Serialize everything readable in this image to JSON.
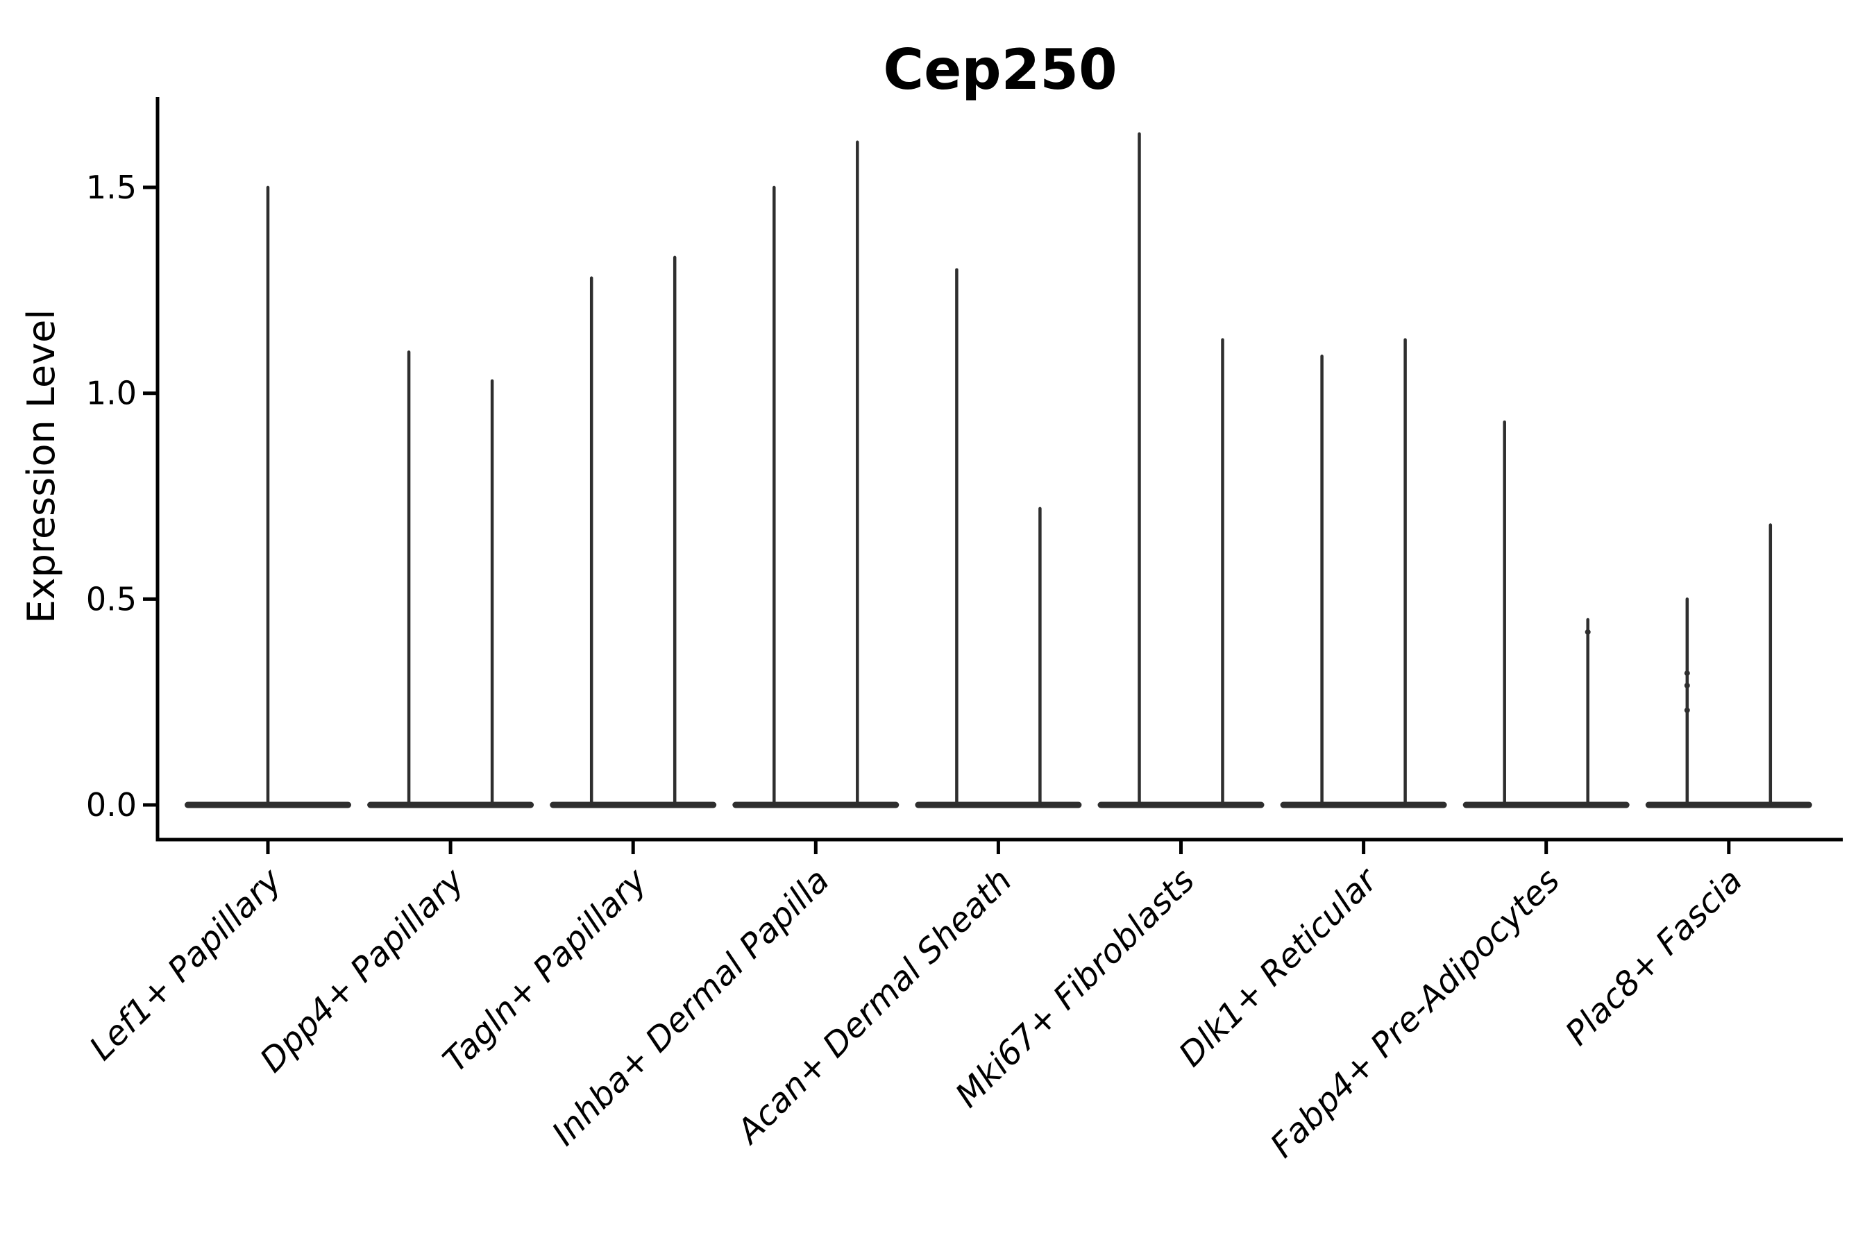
{
  "figure": {
    "background_color": "#ffffff",
    "axis_color": "#000000",
    "violin_color": "#2e2e2e"
  },
  "chart_data": {
    "type": "violin",
    "title": "Cep250",
    "xlabel": "",
    "ylabel": "Expression Level",
    "ylim": [
      0.0,
      1.72
    ],
    "yticks": [
      0.0,
      0.5,
      1.0,
      1.5
    ],
    "ytick_labels": [
      "0.0",
      "0.5",
      "1.0",
      "1.5"
    ],
    "grid": false,
    "legend": "none",
    "description": "Violin plot of gene expression; each violin collapses to a flat bar at 0 with thin density spikes rising to the maximum expression value(s).",
    "categories": [
      "Lef1+ Papillary",
      "Dpp4+ Papillary",
      "Tagln+ Papillary",
      "Inhba+ Dermal Papilla",
      "Acan+ Dermal Sheath",
      "Mki67+ Fibroblasts",
      "Dlk1+ Reticular",
      "Fabp4+ Pre-Adipocytes",
      "Plac8+ Fascia"
    ],
    "violins": [
      {
        "label": "Lef1+ Papillary",
        "spike_maxima": [
          1.5
        ],
        "spike_offsets": [
          0
        ],
        "dots": [
          []
        ]
      },
      {
        "label": "Dpp4+ Papillary",
        "spike_maxima": [
          1.1,
          1.03
        ],
        "spike_offsets": [
          -60,
          60
        ],
        "dots": [
          [],
          []
        ]
      },
      {
        "label": "Tagln+ Papillary",
        "spike_maxima": [
          1.28,
          1.33
        ],
        "spike_offsets": [
          -60,
          60
        ],
        "dots": [
          [],
          []
        ]
      },
      {
        "label": "Inhba+ Dermal Papilla",
        "spike_maxima": [
          1.5,
          1.61
        ],
        "spike_offsets": [
          -60,
          60
        ],
        "dots": [
          [],
          []
        ]
      },
      {
        "label": "Acan+ Dermal Sheath",
        "spike_maxima": [
          1.3,
          0.72
        ],
        "spike_offsets": [
          -60,
          60
        ],
        "dots": [
          [],
          []
        ]
      },
      {
        "label": "Mki67+ Fibroblasts",
        "spike_maxima": [
          1.63,
          1.13
        ],
        "spike_offsets": [
          -60,
          60
        ],
        "dots": [
          [],
          []
        ]
      },
      {
        "label": "Dlk1+ Reticular",
        "spike_maxima": [
          1.09,
          1.13
        ],
        "spike_offsets": [
          -60,
          60
        ],
        "dots": [
          [],
          []
        ]
      },
      {
        "label": "Fabp4+ Pre-Adipocytes",
        "spike_maxima": [
          0.93,
          0.45
        ],
        "spike_offsets": [
          -60,
          60
        ],
        "dots": [
          [],
          [
            0.42
          ]
        ]
      },
      {
        "label": "Plac8+ Fascia",
        "spike_maxima": [
          0.5,
          0.68
        ],
        "spike_offsets": [
          -60,
          60
        ],
        "dots": [
          [
            0.32,
            0.29,
            0.23
          ],
          []
        ]
      }
    ]
  }
}
